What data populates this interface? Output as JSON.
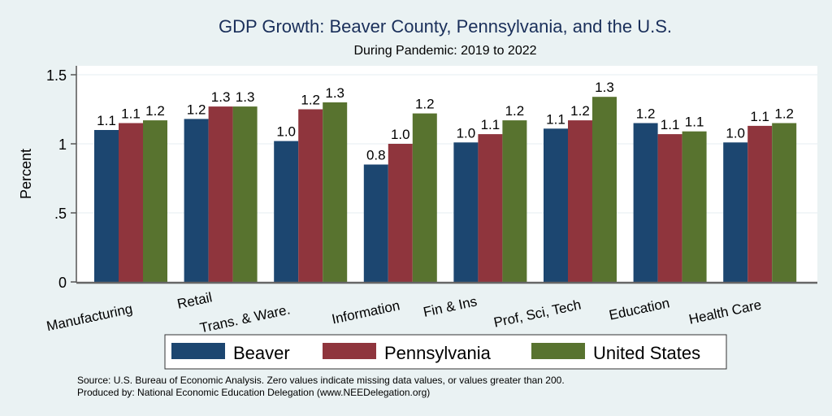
{
  "chart_data": {
    "type": "bar",
    "title": "GDP Growth: Beaver County, Pennsylvania, and the U.S.",
    "subtitle": "During Pandemic: 2019 to 2022",
    "xlabel": "",
    "ylabel": "Percent",
    "ylim": [
      0,
      1.6
    ],
    "yticks": [
      0,
      0.5,
      1,
      1.5
    ],
    "ytick_labels": [
      "0",
      ".5",
      "1",
      "1.5"
    ],
    "grid": true,
    "legend_position": "bottom",
    "categories": [
      "Manufacturing",
      "Retail",
      "Trans. & Ware.",
      "Information",
      "Fin & Ins",
      "Prof, Sci, Tech",
      "Education",
      "Health Care"
    ],
    "series": [
      {
        "name": "Beaver",
        "color": "#1c4670",
        "values": [
          1.1,
          1.18,
          1.02,
          0.85,
          1.01,
          1.11,
          1.15,
          1.01
        ],
        "labels": [
          "1.1",
          "1.2",
          "1.0",
          "0.8",
          "1.0",
          "1.1",
          "1.2",
          "1.0"
        ]
      },
      {
        "name": "Pennsylvania",
        "color": "#8f353d",
        "values": [
          1.15,
          1.27,
          1.25,
          1.0,
          1.07,
          1.17,
          1.07,
          1.13
        ],
        "labels": [
          "1.1",
          "1.3",
          "1.2",
          "1.0",
          "1.1",
          "1.2",
          "1.1",
          "1.1"
        ]
      },
      {
        "name": "United States",
        "color": "#58732f",
        "values": [
          1.17,
          1.27,
          1.3,
          1.22,
          1.17,
          1.34,
          1.09,
          1.15
        ],
        "labels": [
          "1.2",
          "1.3",
          "1.3",
          "1.2",
          "1.2",
          "1.3",
          "1.1",
          "1.2"
        ]
      }
    ],
    "notes": [
      "Source: U.S. Bureau of Economic Analysis. Zero values indicate missing data values, or values greater than 200.",
      "Produced by: National Economic Education Delegation (www.NEEDelegation.org)"
    ]
  }
}
